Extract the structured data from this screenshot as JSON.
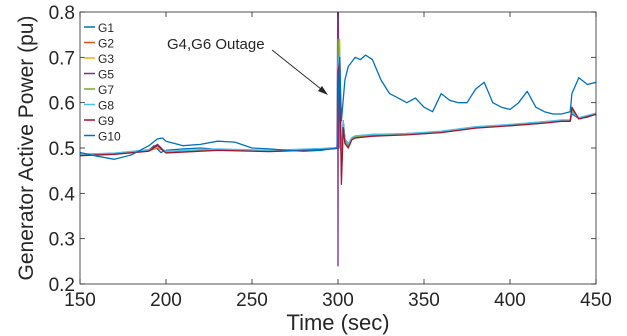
{
  "chart_data": {
    "type": "line",
    "title": "",
    "xlabel": "Time (sec)",
    "ylabel": "Generator Active Power (pu)",
    "xlim": [
      150,
      450
    ],
    "ylim": [
      0.2,
      0.8
    ],
    "xticks": [
      150,
      200,
      250,
      300,
      350,
      400,
      450
    ],
    "yticks": [
      0.2,
      0.3,
      0.4,
      0.5,
      0.6,
      0.7,
      0.8
    ],
    "x_tick_labels": [
      "150",
      "200",
      "250",
      "300",
      "350",
      "400",
      "450"
    ],
    "y_tick_labels": [
      "0.2",
      "0.3",
      "0.4",
      "0.5",
      "0.6",
      "0.7",
      "0.8"
    ],
    "grid": false,
    "legend_position": "top-left",
    "annotation": {
      "text": "G4,G6 Outage",
      "x": 300,
      "y": 0.6
    },
    "series": [
      {
        "name": "G1",
        "color": "#0072BD",
        "x": [
          150,
          160,
          170,
          175,
          180,
          190,
          193,
          197,
          200,
          210,
          220,
          230,
          240,
          250,
          260,
          270,
          280,
          290,
          299.5,
          300,
          301,
          302,
          303,
          304,
          306,
          308,
          310,
          312,
          315,
          320,
          330,
          340,
          350,
          360,
          370,
          380,
          390,
          400,
          410,
          420,
          430,
          435,
          436,
          440,
          445,
          450
        ],
        "y": [
          0.485,
          0.487,
          0.488,
          0.49,
          0.492,
          0.495,
          0.505,
          0.49,
          0.495,
          0.498,
          0.5,
          0.497,
          0.495,
          0.495,
          0.494,
          0.494,
          0.496,
          0.498,
          0.5,
          0.66,
          0.7,
          0.47,
          0.56,
          0.52,
          0.51,
          0.52,
          0.525,
          0.527,
          0.527,
          0.53,
          0.53,
          0.532,
          0.533,
          0.535,
          0.54,
          0.545,
          0.548,
          0.55,
          0.555,
          0.558,
          0.56,
          0.56,
          0.575,
          0.565,
          0.568,
          0.575
        ]
      },
      {
        "name": "G2",
        "color": "#D95319",
        "x": [
          150,
          170,
          190,
          195,
          200,
          230,
          260,
          290,
          299.5,
          300,
          301,
          302,
          303,
          304,
          306,
          308,
          310,
          320,
          340,
          360,
          380,
          400,
          420,
          430,
          435,
          436,
          440,
          450
        ],
        "y": [
          0.484,
          0.487,
          0.494,
          0.5,
          0.492,
          0.496,
          0.493,
          0.497,
          0.5,
          0.69,
          0.72,
          0.44,
          0.55,
          0.515,
          0.505,
          0.52,
          0.525,
          0.528,
          0.53,
          0.535,
          0.545,
          0.55,
          0.556,
          0.56,
          0.56,
          0.585,
          0.565,
          0.575
        ]
      },
      {
        "name": "G3",
        "color": "#EDB120",
        "x": [
          150,
          170,
          190,
          195,
          200,
          230,
          260,
          290,
          299.5,
          300,
          301,
          302,
          303,
          304,
          306,
          308,
          310,
          320,
          340,
          360,
          380,
          400,
          420,
          430,
          435,
          436,
          440,
          450
        ],
        "y": [
          0.485,
          0.488,
          0.495,
          0.502,
          0.493,
          0.497,
          0.494,
          0.498,
          0.5,
          0.7,
          0.74,
          0.45,
          0.56,
          0.52,
          0.508,
          0.522,
          0.526,
          0.529,
          0.531,
          0.536,
          0.546,
          0.551,
          0.557,
          0.561,
          0.561,
          0.58,
          0.566,
          0.576
        ]
      },
      {
        "name": "G5",
        "color": "#7E2F8E",
        "x": [
          150,
          170,
          190,
          195,
          200,
          230,
          260,
          290,
          299.5,
          299.8,
          300,
          300.2,
          300.6,
          301,
          302,
          303,
          304,
          306,
          308,
          310,
          320,
          340,
          360,
          380,
          400,
          420,
          430,
          435,
          436,
          440,
          450
        ],
        "y": [
          0.486,
          0.488,
          0.496,
          0.508,
          0.49,
          0.497,
          0.494,
          0.498,
          0.5,
          0.8,
          0.24,
          0.8,
          0.5,
          0.68,
          0.45,
          0.56,
          0.52,
          0.506,
          0.52,
          0.524,
          0.528,
          0.531,
          0.536,
          0.546,
          0.551,
          0.557,
          0.561,
          0.561,
          0.578,
          0.566,
          0.576
        ]
      },
      {
        "name": "G7",
        "color": "#77AC30",
        "x": [
          150,
          170,
          190,
          195,
          200,
          230,
          260,
          290,
          299.5,
          300,
          301,
          302,
          303,
          304,
          306,
          308,
          310,
          320,
          340,
          360,
          380,
          400,
          420,
          430,
          435,
          436,
          440,
          450
        ],
        "y": [
          0.485,
          0.488,
          0.495,
          0.504,
          0.492,
          0.497,
          0.494,
          0.498,
          0.5,
          0.74,
          0.7,
          0.44,
          0.55,
          0.515,
          0.507,
          0.521,
          0.525,
          0.528,
          0.53,
          0.535,
          0.545,
          0.55,
          0.556,
          0.56,
          0.56,
          0.583,
          0.565,
          0.575
        ]
      },
      {
        "name": "G8",
        "color": "#4DBEEE",
        "x": [
          150,
          170,
          190,
          195,
          200,
          230,
          260,
          290,
          299.5,
          300,
          301,
          302,
          303,
          304,
          306,
          308,
          310,
          320,
          340,
          360,
          380,
          400,
          420,
          430,
          435,
          436,
          440,
          450
        ],
        "y": [
          0.486,
          0.489,
          0.496,
          0.503,
          0.493,
          0.498,
          0.495,
          0.499,
          0.501,
          0.68,
          0.71,
          0.46,
          0.56,
          0.52,
          0.509,
          0.523,
          0.527,
          0.53,
          0.532,
          0.537,
          0.547,
          0.552,
          0.558,
          0.562,
          0.562,
          0.578,
          0.567,
          0.577
        ]
      },
      {
        "name": "G9",
        "color": "#A2142F",
        "x": [
          150,
          170,
          190,
          195,
          200,
          230,
          260,
          290,
          299.5,
          300,
          301,
          302,
          303,
          304,
          306,
          308,
          310,
          320,
          340,
          360,
          380,
          400,
          420,
          430,
          435,
          436,
          440,
          450
        ],
        "y": [
          0.483,
          0.486,
          0.493,
          0.506,
          0.489,
          0.495,
          0.492,
          0.496,
          0.499,
          0.67,
          0.69,
          0.42,
          0.545,
          0.51,
          0.5,
          0.518,
          0.522,
          0.526,
          0.529,
          0.534,
          0.544,
          0.549,
          0.555,
          0.559,
          0.559,
          0.59,
          0.564,
          0.574
        ]
      },
      {
        "name": "G10",
        "color": "#0072BD",
        "x": [
          150,
          160,
          170,
          180,
          190,
          195,
          198,
          200,
          210,
          220,
          230,
          240,
          250,
          260,
          270,
          280,
          290,
          299.5,
          300,
          301,
          302,
          304,
          306,
          308,
          310,
          313,
          316,
          320,
          325,
          330,
          335,
          340,
          345,
          350,
          355,
          360,
          365,
          370,
          375,
          380,
          385,
          390,
          395,
          400,
          405,
          410,
          415,
          420,
          425,
          430,
          435,
          436,
          440,
          445,
          450
        ],
        "y": [
          0.49,
          0.482,
          0.475,
          0.485,
          0.505,
          0.52,
          0.522,
          0.515,
          0.505,
          0.508,
          0.515,
          0.513,
          0.5,
          0.498,
          0.495,
          0.493,
          0.495,
          0.5,
          0.6,
          0.7,
          0.56,
          0.65,
          0.68,
          0.69,
          0.7,
          0.695,
          0.705,
          0.695,
          0.65,
          0.62,
          0.61,
          0.6,
          0.61,
          0.59,
          0.58,
          0.62,
          0.605,
          0.6,
          0.6,
          0.63,
          0.645,
          0.6,
          0.59,
          0.585,
          0.6,
          0.625,
          0.59,
          0.58,
          0.575,
          0.575,
          0.58,
          0.62,
          0.655,
          0.64,
          0.645
        ]
      }
    ]
  }
}
